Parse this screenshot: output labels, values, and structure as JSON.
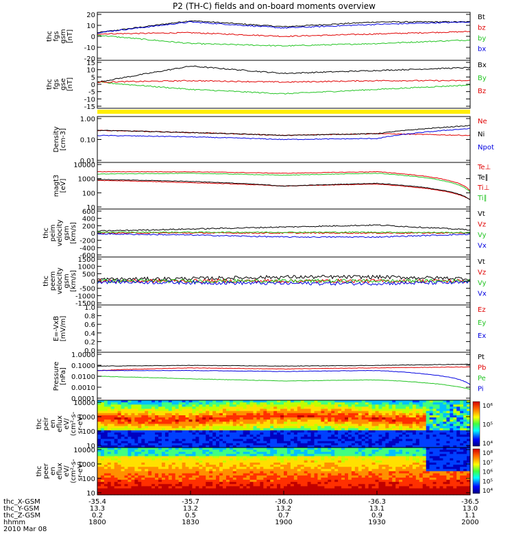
{
  "title": "P2 (TH-C) fields and on-board moments overview",
  "colors": {
    "black": "#000000",
    "red": "#e00000",
    "green": "#22c422",
    "blue": "#0000e0",
    "yellow": "#ffee00"
  },
  "panels": [
    {
      "id": "fgs-gsm",
      "ylabel": [
        "thc",
        "fgs",
        "gsm",
        "[nT]"
      ],
      "ticks": [
        "20",
        "10",
        "0",
        "-10",
        "-20"
      ],
      "legend": [
        {
          "label": "Bt",
          "color": "black"
        },
        {
          "label": "bz",
          "color": "red"
        },
        {
          "label": "by",
          "color": "green"
        },
        {
          "label": "bx",
          "color": "blue"
        }
      ]
    },
    {
      "id": "fgs-gse",
      "ylabel": [
        "thc",
        "fgs",
        "gse",
        "[nT]"
      ],
      "ticks": [
        "15",
        "10",
        "5",
        "0",
        "-5",
        "-10",
        "-15"
      ],
      "legend": [
        {
          "label": "Bx",
          "color": "black"
        },
        {
          "label": "By",
          "color": "green"
        },
        {
          "label": "Bz",
          "color": "red"
        }
      ]
    },
    {
      "id": "density",
      "ylabel": [
        "Density",
        "[cm-3]"
      ],
      "ticks": [
        "1.00",
        "0.10",
        "0.01"
      ],
      "legend": [
        {
          "label": "Ne",
          "color": "red"
        },
        {
          "label": "Ni",
          "color": "black"
        },
        {
          "label": "Npot",
          "color": "blue"
        }
      ]
    },
    {
      "id": "temperature",
      "ylabel": [
        "magt3",
        "[eV]"
      ],
      "ticks": [
        "10000",
        "1000",
        "100",
        "10"
      ],
      "legend": [
        {
          "label": "Te⊥",
          "color": "red"
        },
        {
          "label": "Te∥",
          "color": "black"
        },
        {
          "label": "Ti⊥",
          "color": "red"
        },
        {
          "label": "Ti∥",
          "color": "green"
        }
      ]
    },
    {
      "id": "peim-velocity",
      "ylabel": [
        "thc",
        "peim",
        "velocity",
        "gsm",
        "[km/s]"
      ],
      "ticks": [
        "600",
        "400",
        "200",
        "0",
        "-200",
        "-400",
        "-600"
      ],
      "legend": [
        {
          "label": "Vt",
          "color": "black"
        },
        {
          "label": "Vz",
          "color": "red"
        },
        {
          "label": "Vy",
          "color": "green"
        },
        {
          "label": "Vx",
          "color": "blue"
        }
      ]
    },
    {
      "id": "peem-velocity",
      "ylabel": [
        "thc",
        "peem",
        "velocity",
        "gsm",
        "[km/s]"
      ],
      "ticks": [
        "1500",
        "1000",
        "500",
        "0",
        "-500",
        "-1000",
        "-1500"
      ],
      "legend": [
        {
          "label": "Vt",
          "color": "black"
        },
        {
          "label": "Vz",
          "color": "red"
        },
        {
          "label": "Vy",
          "color": "green"
        },
        {
          "label": "Vx",
          "color": "blue"
        }
      ]
    },
    {
      "id": "efield",
      "ylabel": [
        "E=-VxB",
        "[mV/m]"
      ],
      "ticks": [
        "1.0",
        "0.8",
        "0.6",
        "0.4",
        "0.2",
        "0.0"
      ],
      "legend": [
        {
          "label": "Ez",
          "color": "red"
        },
        {
          "label": "Ey",
          "color": "green"
        },
        {
          "label": "Ex",
          "color": "blue"
        }
      ]
    },
    {
      "id": "pressure",
      "ylabel": [
        "Pressure",
        "[nPa]"
      ],
      "ticks": [
        "1.0000",
        "0.1000",
        "0.0100",
        "0.0010",
        "0.0001"
      ],
      "legend": [
        {
          "label": "Pt",
          "color": "black"
        },
        {
          "label": "Pb",
          "color": "red"
        },
        {
          "label": "Pe",
          "color": "green"
        },
        {
          "label": "Pi",
          "color": "blue"
        }
      ]
    },
    {
      "id": "peir-eflux",
      "ylabel": [
        "thc",
        "peir",
        "en",
        "eflux",
        "eV/",
        "(cm²-s-",
        "sr-eV)"
      ],
      "ticks": [
        "10000",
        "1000",
        "100",
        "10"
      ],
      "colorbar": [
        "10⁶",
        "10⁵",
        "10⁴"
      ]
    },
    {
      "id": "peer-eflux",
      "ylabel": [
        "thc",
        "peer",
        "en",
        "eflux",
        "eV/",
        "(cm²-s-",
        "sr-eV)"
      ],
      "ticks": [
        "10000",
        "1000",
        "100",
        "10"
      ],
      "colorbar": [
        "10⁸",
        "10⁷",
        "10⁶",
        "10⁵",
        "10⁴"
      ]
    }
  ],
  "axis_rows": [
    {
      "label": "thc_X-GSM",
      "values": [
        "-35.4",
        "-35.7",
        "-36.0",
        "-36.3",
        "-36.5"
      ]
    },
    {
      "label": "thc_Y-GSM",
      "values": [
        "13.3",
        "13.2",
        "13.2",
        "13.1",
        "13.0"
      ]
    },
    {
      "label": "thc_Z-GSM",
      "values": [
        "0.2",
        "0.5",
        "0.7",
        "0.9",
        "1.1"
      ]
    },
    {
      "label": "hhmm",
      "values": [
        "1800",
        "1830",
        "1900",
        "1930",
        "2000"
      ]
    }
  ],
  "date": "2010 Mar 08",
  "chart_data": [
    {
      "type": "line",
      "panel": "fgs-gsm",
      "x": [
        "1800",
        "1830",
        "1900",
        "1930",
        "2000"
      ],
      "ylim": [
        -20,
        20
      ],
      "series": [
        {
          "name": "Bt",
          "values": [
            3,
            13,
            8,
            12,
            12
          ]
        },
        {
          "name": "bz",
          "values": [
            2,
            3,
            0,
            2,
            4
          ]
        },
        {
          "name": "by",
          "values": [
            1,
            -6,
            -8,
            -6,
            -3
          ]
        },
        {
          "name": "bx",
          "values": [
            3,
            12,
            7,
            10,
            12
          ]
        }
      ]
    },
    {
      "type": "line",
      "panel": "fgs-gse",
      "x": [
        "1800",
        "1830",
        "1900",
        "1930",
        "2000"
      ],
      "ylim": [
        -18,
        15
      ],
      "series": [
        {
          "name": "Bx",
          "values": [
            0,
            11,
            6,
            8,
            10
          ]
        },
        {
          "name": "By",
          "values": [
            0,
            -5,
            -8,
            -5,
            -2
          ]
        },
        {
          "name": "Bz",
          "values": [
            0,
            1,
            0,
            1,
            1
          ]
        }
      ]
    },
    {
      "type": "line",
      "panel": "density",
      "x": [
        "1800",
        "1830",
        "1900",
        "1930",
        "2000"
      ],
      "ylim": [
        0.01,
        1.0
      ],
      "series": [
        {
          "name": "Ne",
          "values": [
            0.25,
            0.2,
            0.15,
            0.18,
            0.15
          ]
        },
        {
          "name": "Ni",
          "values": [
            0.25,
            0.2,
            0.15,
            0.18,
            0.4
          ]
        },
        {
          "name": "Npot",
          "values": [
            0.15,
            0.13,
            0.1,
            0.11,
            0.3
          ]
        }
      ]
    },
    {
      "type": "line",
      "panel": "temperature",
      "x": [
        "1800",
        "1830",
        "1900",
        "1930",
        "2000"
      ],
      "ylim": [
        10,
        10000
      ],
      "series": [
        {
          "name": "Te⊥",
          "values": [
            700,
            500,
            300,
            400,
            40
          ]
        },
        {
          "name": "Te∥",
          "values": [
            800,
            600,
            300,
            450,
            40
          ]
        },
        {
          "name": "Ti⊥",
          "values": [
            2500,
            2500,
            2000,
            2500,
            150
          ]
        },
        {
          "name": "Ti∥",
          "values": [
            1800,
            2000,
            1500,
            2000,
            120
          ]
        }
      ]
    },
    {
      "type": "line",
      "panel": "peim-velocity",
      "x": [
        "1800",
        "1830",
        "1900",
        "1930",
        "2000"
      ],
      "ylim": [
        -600,
        600
      ],
      "series": [
        {
          "name": "Vt",
          "values": [
            50,
            100,
            150,
            200,
            80
          ]
        },
        {
          "name": "Vz",
          "values": [
            0,
            0,
            0,
            0,
            0
          ]
        },
        {
          "name": "Vy",
          "values": [
            20,
            20,
            20,
            20,
            10
          ]
        },
        {
          "name": "Vx",
          "values": [
            -20,
            -50,
            -100,
            -100,
            -30
          ]
        }
      ]
    },
    {
      "type": "line",
      "panel": "peem-velocity",
      "x": [
        "1800",
        "1830",
        "1900",
        "1930",
        "2000"
      ],
      "ylim": [
        -1500,
        1500
      ],
      "series": [
        {
          "name": "Vt",
          "values": [
            100,
            150,
            250,
            250,
            150
          ]
        },
        {
          "name": "Vz",
          "values": [
            0,
            0,
            0,
            0,
            0
          ]
        },
        {
          "name": "Vy",
          "values": [
            0,
            0,
            0,
            0,
            0
          ]
        },
        {
          "name": "Vx",
          "values": [
            -50,
            -100,
            -150,
            -150,
            -100
          ]
        }
      ]
    },
    {
      "type": "line",
      "panel": "pressure",
      "x": [
        "1800",
        "1830",
        "1900",
        "1930",
        "2000"
      ],
      "ylim": [
        0.0001,
        1.0
      ],
      "series": [
        {
          "name": "Pt",
          "values": [
            0.07,
            0.08,
            0.07,
            0.08,
            0.1
          ]
        },
        {
          "name": "Pb",
          "values": [
            0.03,
            0.05,
            0.04,
            0.05,
            0.06
          ]
        },
        {
          "name": "Pe",
          "values": [
            0.01,
            0.006,
            0.004,
            0.005,
            0.0008
          ]
        },
        {
          "name": "Pi",
          "values": [
            0.03,
            0.03,
            0.025,
            0.03,
            0.002
          ]
        }
      ]
    },
    {
      "type": "heatmap",
      "panel": "peir-eflux",
      "x": [
        "1800",
        "1830",
        "1900",
        "1930",
        "2000"
      ],
      "ylim": [
        10,
        20000
      ]
    },
    {
      "type": "heatmap",
      "panel": "peer-eflux",
      "x": [
        "1800",
        "1830",
        "1900",
        "1930",
        "2000"
      ],
      "ylim": [
        10,
        20000
      ]
    }
  ]
}
